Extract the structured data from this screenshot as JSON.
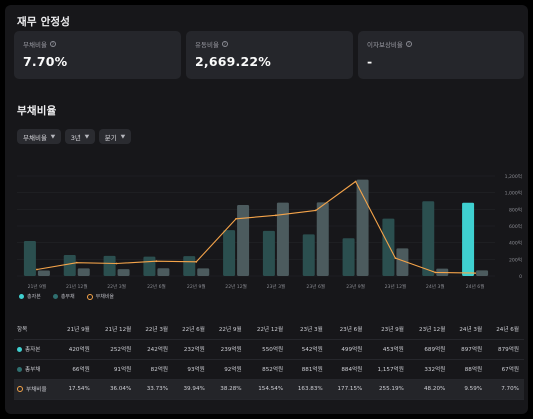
{
  "stability": {
    "title": "재무 안정성",
    "cards": [
      {
        "label": "부채비율",
        "value": "7.70%"
      },
      {
        "label": "유동비율",
        "value": "2,669.22%"
      },
      {
        "label": "이자보상비율",
        "value": "-"
      }
    ]
  },
  "debt_section": {
    "title": "부채비율",
    "filters": [
      {
        "label": "부채비율"
      },
      {
        "label": "3년"
      },
      {
        "label": "분기"
      }
    ]
  },
  "legend": [
    "총자본",
    "총부채",
    "부채비율"
  ],
  "colors": {
    "equity": "#2b4f4f",
    "debt": "#4c5b5e",
    "equity_hi": "#3fd0d0",
    "ratio_line": "#f5a44a"
  },
  "chart_data": {
    "type": "bar",
    "categories": [
      "21년 9월",
      "21년 12월",
      "22년 3월",
      "22년 6월",
      "22년 9월",
      "22년 12월",
      "23년 3월",
      "23년 6월",
      "23년 9월",
      "23년 12월",
      "24년 3월",
      "24년 6월"
    ],
    "series": [
      {
        "name": "총자본",
        "values": [
          420,
          252,
          242,
          232,
          239,
          550,
          542,
          499,
          453,
          689,
          897,
          879
        ]
      },
      {
        "name": "총부채",
        "values": [
          66,
          91,
          82,
          93,
          92,
          852,
          881,
          884,
          1157,
          332,
          88,
          67
        ]
      },
      {
        "name": "부채비율",
        "values": [
          17.54,
          36.04,
          33.73,
          39.94,
          38.28,
          154.54,
          163.83,
          177.15,
          255.19,
          48.2,
          9.59,
          7.7
        ]
      }
    ],
    "y_left_ticks": [
      "1,200억",
      "1,000억",
      "800억",
      "600억",
      "400억",
      "200억",
      "0"
    ],
    "ylim_left": [
      0,
      1200
    ],
    "ylim_right": [
      0,
      270
    ]
  },
  "table": {
    "header": [
      "항목",
      "21년 9월",
      "21년 12월",
      "22년 3월",
      "22년 6월",
      "22년 9월",
      "22년 12월",
      "23년 3월",
      "23년 6월",
      "23년 9월",
      "23년 12월",
      "24년 3월",
      "24년 6월"
    ],
    "rows": [
      {
        "label": "총자본",
        "cells": [
          "420억원",
          "252억원",
          "242억원",
          "232억원",
          "239억원",
          "550억원",
          "542억원",
          "499억원",
          "453억원",
          "689억원",
          "897억원",
          "879억원"
        ]
      },
      {
        "label": "총부채",
        "cells": [
          "66억원",
          "91억원",
          "82억원",
          "93억원",
          "92억원",
          "852억원",
          "881억원",
          "884억원",
          "1,157억원",
          "332억원",
          "88억원",
          "67억원"
        ]
      },
      {
        "label": "부채비율",
        "cells": [
          "17.54%",
          "36.04%",
          "33.73%",
          "39.94%",
          "38.28%",
          "154.54%",
          "163.83%",
          "177.15%",
          "255.19%",
          "48.20%",
          "9.59%",
          "7.70%"
        ]
      }
    ]
  }
}
